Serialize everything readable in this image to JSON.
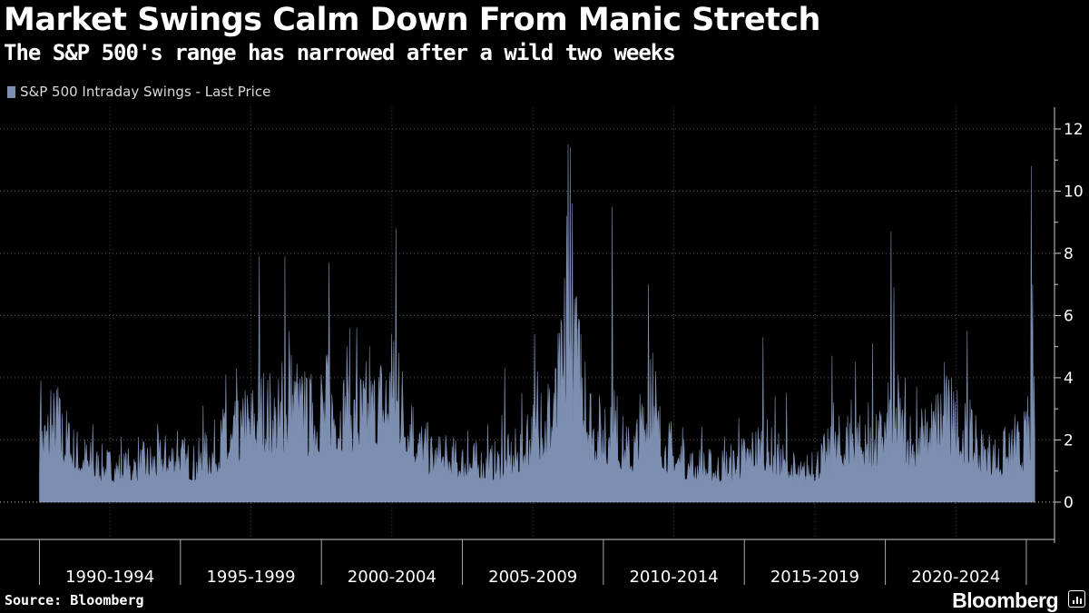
{
  "chart_data": {
    "type": "bar",
    "title": "Market Swings Calm Down From Manic Stretch",
    "subtitle": "The S&P 500's range has narrowed after a wild two weeks",
    "legend": [
      {
        "label": "S&P 500 Intraday Swings - Last Price",
        "color": "#7d8fb1"
      }
    ],
    "series_color": "#7d8fb1",
    "xlabel": "",
    "ylabel": "",
    "x_start": 1990.0,
    "x_end": 2025.3,
    "xlim": [
      1988.6,
      2026.0
    ],
    "ylim": [
      -1.2,
      12.7
    ],
    "y_ticks": [
      0,
      2,
      4,
      6,
      8,
      10,
      12
    ],
    "x_tick_labels": [
      "1990-1994",
      "1995-1999",
      "2000-2004",
      "2005-2009",
      "2010-2014",
      "2015-2019",
      "2020-2024"
    ],
    "x_label_centers": [
      1992.5,
      1997.5,
      2002.5,
      2007.5,
      2012.5,
      2017.5,
      2022.5
    ],
    "x_tick_marks": [
      1990,
      1995,
      2000,
      2005,
      2010,
      2015,
      2020,
      2025
    ],
    "grid": true,
    "legend_position": "top-left",
    "baseline": [
      [
        1990.0,
        1.8
      ],
      [
        1990.6,
        2.3
      ],
      [
        1991.2,
        1.5
      ],
      [
        1992.0,
        1.1
      ],
      [
        1993.0,
        1.0
      ],
      [
        1994.0,
        1.2
      ],
      [
        1994.8,
        1.4
      ],
      [
        1995.5,
        1.1
      ],
      [
        1996.5,
        1.7
      ],
      [
        1997.2,
        2.0
      ],
      [
        1997.8,
        2.7
      ],
      [
        1998.5,
        2.4
      ],
      [
        1998.9,
        3.1
      ],
      [
        1999.5,
        2.4
      ],
      [
        2000.3,
        2.9
      ],
      [
        2001.0,
        2.6
      ],
      [
        2001.7,
        2.7
      ],
      [
        2002.5,
        3.3
      ],
      [
        2002.9,
        2.8
      ],
      [
        2003.5,
        1.7
      ],
      [
        2004.0,
        1.3
      ],
      [
        2005.0,
        1.2
      ],
      [
        2006.0,
        1.1
      ],
      [
        2006.8,
        1.3
      ],
      [
        2007.5,
        2.0
      ],
      [
        2008.2,
        2.6
      ],
      [
        2008.8,
        4.5
      ],
      [
        2009.2,
        3.6
      ],
      [
        2009.7,
        2.1
      ],
      [
        2010.5,
        1.8
      ],
      [
        2011.0,
        1.4
      ],
      [
        2011.6,
        2.8
      ],
      [
        2012.2,
        1.6
      ],
      [
        2013.0,
        1.1
      ],
      [
        2014.0,
        1.0
      ],
      [
        2014.8,
        1.2
      ],
      [
        2015.6,
        1.7
      ],
      [
        2016.2,
        1.3
      ],
      [
        2017.0,
        0.8
      ],
      [
        2018.0,
        1.4
      ],
      [
        2018.9,
        2.0
      ],
      [
        2019.5,
        1.4
      ],
      [
        2020.2,
        2.4
      ],
      [
        2020.7,
        2.1
      ],
      [
        2021.2,
        1.5
      ],
      [
        2022.0,
        2.6
      ],
      [
        2022.6,
        2.1
      ],
      [
        2023.3,
        1.5
      ],
      [
        2024.0,
        1.3
      ],
      [
        2024.8,
        1.5
      ],
      [
        2025.2,
        2.2
      ],
      [
        2025.3,
        2.5
      ]
    ],
    "spikes": [
      [
        1990.05,
        3.9
      ],
      [
        1990.4,
        3.6
      ],
      [
        1990.65,
        3.7
      ],
      [
        1991.05,
        2.5
      ],
      [
        1991.9,
        2.5
      ],
      [
        1992.9,
        2.1
      ],
      [
        1993.5,
        2.1
      ],
      [
        1994.2,
        2.5
      ],
      [
        1994.9,
        2.3
      ],
      [
        1995.8,
        3.1
      ],
      [
        1996.5,
        3.0
      ],
      [
        1996.6,
        4.1
      ],
      [
        1997.0,
        4.3
      ],
      [
        1997.3,
        3.6
      ],
      [
        1997.8,
        7.9
      ],
      [
        1998.6,
        4.5
      ],
      [
        1998.7,
        7.9
      ],
      [
        1998.85,
        5.5
      ],
      [
        1999.1,
        3.6
      ],
      [
        1999.4,
        4.2
      ],
      [
        1999.7,
        3.2
      ],
      [
        2000.0,
        4.1
      ],
      [
        2000.2,
        4.2
      ],
      [
        2000.28,
        7.7
      ],
      [
        2000.9,
        5.0
      ],
      [
        2001.0,
        5.6
      ],
      [
        2001.25,
        5.6
      ],
      [
        2001.7,
        5.0
      ],
      [
        2002.3,
        3.8
      ],
      [
        2002.5,
        5.4
      ],
      [
        2002.63,
        8.8
      ],
      [
        2002.75,
        4.8
      ],
      [
        2003.2,
        3.1
      ],
      [
        2004.2,
        2.1
      ],
      [
        2005.2,
        2.3
      ],
      [
        2005.9,
        2.5
      ],
      [
        2006.4,
        2.8
      ],
      [
        2006.5,
        4.3
      ],
      [
        2007.1,
        3.5
      ],
      [
        2007.3,
        2.8
      ],
      [
        2007.55,
        5.4
      ],
      [
        2007.65,
        4.2
      ],
      [
        2007.8,
        3.5
      ],
      [
        2008.05,
        3.8
      ],
      [
        2008.25,
        3.5
      ],
      [
        2008.5,
        4.8
      ],
      [
        2008.62,
        7.2
      ],
      [
        2008.7,
        9.2
      ],
      [
        2008.76,
        11.5
      ],
      [
        2008.82,
        11.4
      ],
      [
        2008.9,
        9.6
      ],
      [
        2009.0,
        5.2
      ],
      [
        2009.05,
        6.6
      ],
      [
        2009.2,
        5.4
      ],
      [
        2009.35,
        4.5
      ],
      [
        2009.55,
        3.1
      ],
      [
        2009.9,
        2.4
      ],
      [
        2010.05,
        3.0
      ],
      [
        2010.32,
        9.5
      ],
      [
        2010.4,
        3.6
      ],
      [
        2010.5,
        3.4
      ],
      [
        2010.9,
        2.3
      ],
      [
        2011.3,
        3.0
      ],
      [
        2011.6,
        7.0
      ],
      [
        2011.68,
        4.6
      ],
      [
        2011.75,
        4.8
      ],
      [
        2011.85,
        4.2
      ],
      [
        2012.4,
        2.6
      ],
      [
        2012.8,
        2.4
      ],
      [
        2013.5,
        2.4
      ],
      [
        2014.3,
        2.1
      ],
      [
        2014.8,
        2.7
      ],
      [
        2015.65,
        5.3
      ],
      [
        2016.1,
        3.4
      ],
      [
        2016.5,
        3.5
      ],
      [
        2017.4,
        1.6
      ],
      [
        2018.1,
        4.7
      ],
      [
        2018.15,
        3.2
      ],
      [
        2018.8,
        3.3
      ],
      [
        2018.95,
        4.5
      ],
      [
        2019.4,
        3.2
      ],
      [
        2019.55,
        5.1
      ],
      [
        2019.9,
        2.1
      ],
      [
        2020.15,
        3.2
      ],
      [
        2020.2,
        8.7
      ],
      [
        2020.3,
        6.9
      ],
      [
        2020.45,
        4.1
      ],
      [
        2020.7,
        4.0
      ],
      [
        2021.1,
        3.7
      ],
      [
        2021.3,
        3.0
      ],
      [
        2021.5,
        2.6
      ],
      [
        2021.8,
        3.2
      ],
      [
        2022.1,
        4.5
      ],
      [
        2022.35,
        4.0
      ],
      [
        2022.55,
        3.6
      ],
      [
        2022.9,
        5.5
      ],
      [
        2023.0,
        3.3
      ],
      [
        2023.2,
        2.8
      ],
      [
        2023.7,
        1.8
      ],
      [
        2024.25,
        2.4
      ],
      [
        2024.6,
        2.8
      ],
      [
        2024.7,
        2.6
      ],
      [
        2025.05,
        3.4
      ],
      [
        2025.18,
        10.8
      ],
      [
        2025.22,
        7.0
      ],
      [
        2025.27,
        3.0
      ]
    ]
  },
  "footer": {
    "source": "Source: Bloomberg",
    "brand": "Bloomberg"
  }
}
